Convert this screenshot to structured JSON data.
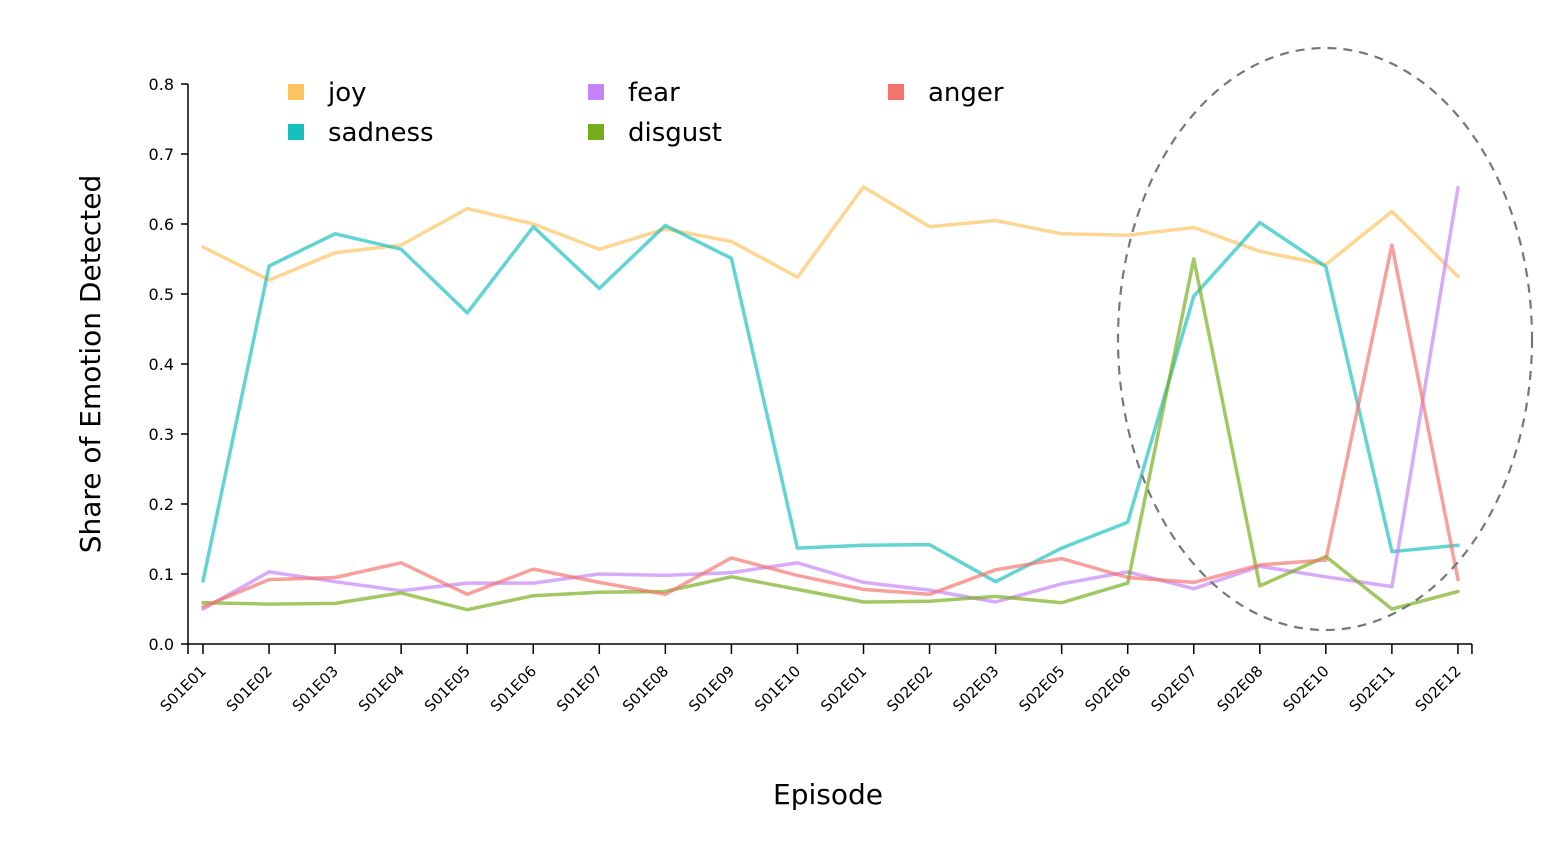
{
  "chart_data": {
    "type": "line",
    "xlabel": "Episode",
    "ylabel": "Share of Emotion Detected",
    "ylim": [
      0.0,
      0.8
    ],
    "yticks": [
      "0.0",
      "0.1",
      "0.2",
      "0.3",
      "0.4",
      "0.5",
      "0.6",
      "0.7",
      "0.8"
    ],
    "grid": false,
    "legend_position": "top-left",
    "categories": [
      "S01E01",
      "S01E02",
      "S01E03",
      "S01E04",
      "S01E05",
      "S01E06",
      "S01E07",
      "S01E08",
      "S01E09",
      "S01E10",
      "S02E01",
      "S02E02",
      "S02E03",
      "S02E05",
      "S02E06",
      "S02E07",
      "S02E08",
      "S02E10",
      "S02E11",
      "S02E12"
    ],
    "series": [
      {
        "name": "joy",
        "color": "#fdc35e",
        "values": [
          0.567,
          0.52,
          0.559,
          0.57,
          0.622,
          0.6,
          0.564,
          0.593,
          0.575,
          0.524,
          0.653,
          0.596,
          0.605,
          0.586,
          0.584,
          0.595,
          0.561,
          0.542,
          0.618,
          0.525
        ]
      },
      {
        "name": "sadness",
        "color": "#17bfbf",
        "values": [
          0.09,
          0.54,
          0.586,
          0.564,
          0.473,
          0.596,
          0.508,
          0.598,
          0.551,
          0.137,
          0.141,
          0.142,
          0.089,
          0.137,
          0.174,
          0.497,
          0.602,
          0.539,
          0.132,
          0.141
        ]
      },
      {
        "name": "fear",
        "color": "#c682f7",
        "values": [
          0.05,
          0.103,
          0.089,
          0.076,
          0.087,
          0.087,
          0.1,
          0.098,
          0.102,
          0.116,
          0.088,
          0.077,
          0.06,
          0.086,
          0.103,
          0.079,
          0.111,
          0.096,
          0.082,
          0.652
        ]
      },
      {
        "name": "disgust",
        "color": "#76ae1b",
        "values": [
          0.059,
          0.057,
          0.058,
          0.073,
          0.049,
          0.069,
          0.074,
          0.075,
          0.096,
          0.078,
          0.06,
          0.061,
          0.068,
          0.059,
          0.087,
          0.55,
          0.083,
          0.125,
          0.05,
          0.075
        ]
      },
      {
        "name": "anger",
        "color": "#f5736c",
        "values": [
          0.053,
          0.092,
          0.095,
          0.116,
          0.071,
          0.107,
          0.088,
          0.071,
          0.123,
          0.098,
          0.078,
          0.071,
          0.106,
          0.122,
          0.095,
          0.088,
          0.113,
          0.12,
          0.57,
          0.092
        ]
      }
    ],
    "annotations": [
      {
        "type": "dashed-ellipse",
        "color": "#777777",
        "highlights_categories": [
          "S02E06",
          "S02E07",
          "S02E08",
          "S02E10",
          "S02E11",
          "S02E12"
        ]
      }
    ]
  }
}
